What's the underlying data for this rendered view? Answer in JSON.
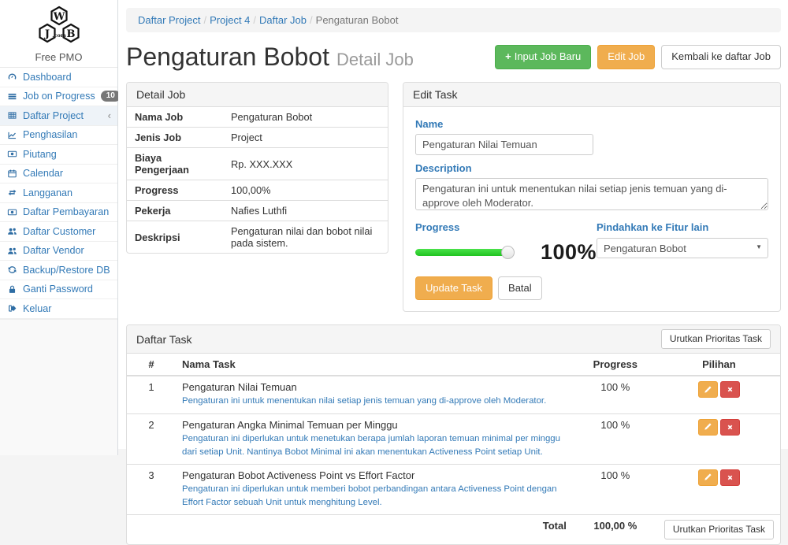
{
  "colors": {
    "link_blue": "#337ab7",
    "button_green": "#5cb85c",
    "button_orange": "#f0ad4e",
    "button_red": "#d9534f",
    "slider_green": "#2fd42f",
    "panel_heading_bg": "#f5f5f5"
  },
  "app": {
    "logo_letters": {
      "j": "J",
      "w": "W",
      "b": "B",
      "dotcom": ".com"
    },
    "brand_subtitle": "Free PMO"
  },
  "sidebar": {
    "items": [
      {
        "label": "Dashboard",
        "icon": "dashboard-icon"
      },
      {
        "label": "Job on Progress",
        "icon": "list-icon",
        "badge": "10"
      },
      {
        "label": "Daftar Project",
        "icon": "table-icon",
        "chevron": "‹"
      },
      {
        "label": "Penghasilan",
        "icon": "line-chart-icon"
      },
      {
        "label": "Piutang",
        "icon": "money-icon"
      },
      {
        "label": "Calendar",
        "icon": "calendar-icon"
      },
      {
        "label": "Langganan",
        "icon": "retweet-icon"
      },
      {
        "label": "Daftar Pembayaran",
        "icon": "money-icon"
      },
      {
        "label": "Daftar Customer",
        "icon": "users-icon"
      },
      {
        "label": "Daftar Vendor",
        "icon": "users-icon"
      },
      {
        "label": "Backup/Restore DB",
        "icon": "refresh-icon"
      },
      {
        "label": "Ganti Password",
        "icon": "lock-icon"
      },
      {
        "label": "Keluar",
        "icon": "sign-out-icon"
      }
    ]
  },
  "breadcrumb": {
    "items": [
      "Daftar Project",
      "Project 4",
      "Daftar Job",
      "Pengaturan Bobot"
    ]
  },
  "header": {
    "title": "Pengaturan Bobot",
    "subtitle": "Detail Job",
    "btn_input_job": "Input Job Baru",
    "btn_input_job_plus": "+",
    "btn_edit_job": "Edit Job",
    "btn_back": "Kembali ke daftar Job"
  },
  "detail_job": {
    "title": "Detail Job",
    "rows": [
      {
        "label": "Nama Job",
        "value": "Pengaturan Bobot"
      },
      {
        "label": "Jenis Job",
        "value": "Project"
      },
      {
        "label": "Biaya Pengerjaan",
        "value": "Rp. XXX.XXX"
      },
      {
        "label": "Progress",
        "value": "100,00%"
      },
      {
        "label": "Pekerja",
        "value": "Nafies Luthfi"
      },
      {
        "label": "Deskripsi",
        "value": "Pengaturan nilai dan bobot nilai pada sistem."
      }
    ]
  },
  "edit_task": {
    "title": "Edit Task",
    "name_label": "Name",
    "name_value": "Pengaturan Nilai Temuan",
    "desc_label": "Description",
    "desc_value": "Pengaturan ini untuk menentukan nilai setiap jenis temuan yang di-approve oleh Moderator.",
    "progress_label": "Progress",
    "progress_value": "100%",
    "progress_percent": 100,
    "move_label": "Pindahkan ke Fitur lain",
    "move_value": "Pengaturan Bobot",
    "btn_update": "Update Task",
    "btn_cancel": "Batal"
  },
  "daftar_task": {
    "title": "Daftar Task",
    "sort_button_label": "Urutkan Prioritas Task",
    "columns": {
      "num": "#",
      "name": "Nama Task",
      "progress": "Progress",
      "options": "Pilihan"
    },
    "rows": [
      {
        "num": "1",
        "name": "Pengaturan Nilai Temuan",
        "desc": "Pengaturan ini untuk menentukan nilai setiap jenis temuan yang di-approve oleh Moderator.",
        "progress": "100 %"
      },
      {
        "num": "2",
        "name": "Pengaturan Angka Minimal Temuan per Minggu",
        "desc": "Pengaturan ini diperlukan untuk menetukan berapa jumlah laporan temuan minimal per minggu dari setiap Unit. Nantinya Bobot Minimal ini akan menentukan Activeness Point setiap Unit.",
        "progress": "100 %"
      },
      {
        "num": "3",
        "name": "Pengaturan Bobot Activeness Point vs Effort Factor",
        "desc": "Pengaturan ini diperlukan untuk memberi bobot perbandingan antara Activeness Point dengan Effort Factor sebuah Unit untuk menghitung Level.",
        "progress": "100 %"
      }
    ],
    "total_label": "Total",
    "total_value": "100,00 %"
  }
}
